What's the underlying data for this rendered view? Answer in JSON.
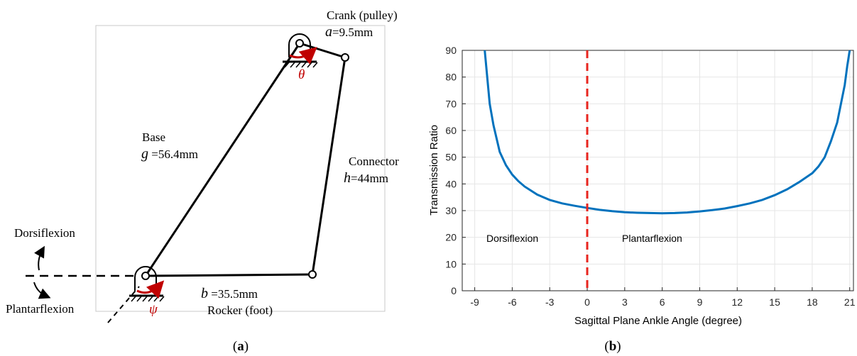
{
  "panel_a": {
    "crank_title": "Crank (pulley)",
    "crank_sym": "a",
    "crank_val": "=9.5mm",
    "theta": "θ",
    "base_title": "Base",
    "base_sym": "g",
    "base_val": " =56.4mm",
    "connector_title": "Connector",
    "connector_sym": "h",
    "connector_val": "=44mm",
    "rocker_sym": "b",
    "rocker_val": " =35.5mm",
    "rocker_title": "Rocker (foot)",
    "psi": "ψ",
    "dorsiflexion": "Dorsiflexion",
    "plantarflexion": "Plantarflexion",
    "caption": "a",
    "colors": {
      "arrow": "#c00000",
      "link": "#000000"
    }
  },
  "panel_b": {
    "caption": "b",
    "annotations": {
      "left": "Dorsiflexion",
      "right": "Plantarflexion"
    }
  },
  "chart_data": {
    "type": "line",
    "xlabel": "Sagittal Plane Ankle Angle (degree)",
    "ylabel": "Transmission Ratio",
    "xlim": [
      -10,
      21.3
    ],
    "ylim": [
      0,
      90
    ],
    "xticks": [
      -9,
      -6,
      -3,
      0,
      3,
      6,
      9,
      12,
      15,
      18,
      21
    ],
    "yticks": [
      0,
      10,
      20,
      30,
      40,
      50,
      60,
      70,
      80,
      90
    ],
    "grid": true,
    "vline": {
      "x": 0,
      "style": "dashed",
      "color": "#e8251f"
    },
    "series": [
      {
        "color": "#0072bd",
        "x": [
          -8.2,
          -8.0,
          -7.8,
          -7.5,
          -7.2,
          -7.0,
          -6.5,
          -6.0,
          -5.5,
          -5.0,
          -4.0,
          -3.0,
          -2.0,
          -1.0,
          0.0,
          1.0,
          2.0,
          3.0,
          4.0,
          5.0,
          6.0,
          7.0,
          8.0,
          9.0,
          10.0,
          11.0,
          12.0,
          13.0,
          14.0,
          15.0,
          16.0,
          17.0,
          18.0,
          18.5,
          19.0,
          19.5,
          20.0,
          20.3,
          20.6,
          20.8,
          21.0
        ],
        "y": [
          90,
          80,
          70,
          62,
          56,
          52,
          47,
          43.5,
          41,
          39,
          36,
          34,
          32.7,
          31.8,
          31,
          30.3,
          29.8,
          29.4,
          29.2,
          29.1,
          29,
          29.1,
          29.3,
          29.7,
          30.2,
          30.8,
          31.7,
          32.7,
          34,
          35.8,
          38,
          40.8,
          44,
          46.5,
          50,
          56,
          63,
          70,
          77,
          84,
          90
        ]
      }
    ]
  }
}
